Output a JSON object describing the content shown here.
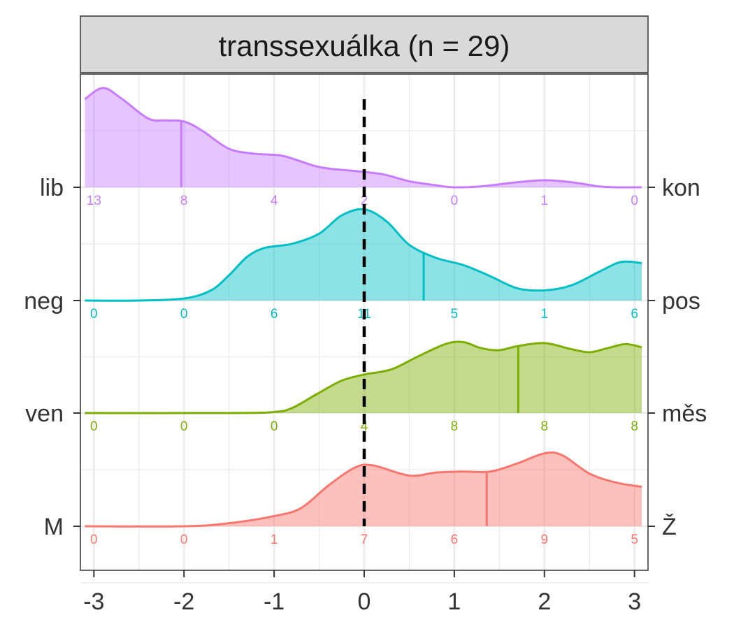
{
  "chart_data": {
    "type": "area",
    "title": "transsexuálka (n = 29)",
    "x_ticks": [
      "-3",
      "-2",
      "-1",
      "0",
      "1",
      "2",
      "3"
    ],
    "xlim": [
      -3.15,
      3.15
    ],
    "reference_line_x": 0,
    "count_positions": [
      -3,
      -2,
      -1,
      0,
      1,
      2,
      3
    ],
    "series": [
      {
        "left_label": "lib",
        "right_label": "kon",
        "color": "#C77CFF",
        "counts": [
          "13",
          "8",
          "4",
          "2",
          "0",
          "1",
          "0"
        ],
        "mean": -2.03,
        "density": [
          [
            -3.1,
            0.87
          ],
          [
            -2.9,
            0.98
          ],
          [
            -2.7,
            0.88
          ],
          [
            -2.4,
            0.68
          ],
          [
            -2.2,
            0.66
          ],
          [
            -2.0,
            0.65
          ],
          [
            -1.8,
            0.56
          ],
          [
            -1.5,
            0.38
          ],
          [
            -1.2,
            0.33
          ],
          [
            -0.9,
            0.31
          ],
          [
            -0.5,
            0.2
          ],
          [
            -0.1,
            0.16
          ],
          [
            0.2,
            0.13
          ],
          [
            0.5,
            0.06
          ],
          [
            0.8,
            0.02
          ],
          [
            1.0,
            0.0
          ],
          [
            1.3,
            0.01
          ],
          [
            1.7,
            0.05
          ],
          [
            2.0,
            0.07
          ],
          [
            2.3,
            0.05
          ],
          [
            2.6,
            0.01
          ],
          [
            2.8,
            0.0
          ],
          [
            3.08,
            0.0
          ]
        ]
      },
      {
        "left_label": "neg",
        "right_label": "pos",
        "color": "#00BFC4",
        "counts": [
          "0",
          "0",
          "6",
          "11",
          "5",
          "1",
          "6"
        ],
        "mean": 0.66,
        "density": [
          [
            -3.1,
            0.0
          ],
          [
            -2.5,
            0.0
          ],
          [
            -2.0,
            0.02
          ],
          [
            -1.7,
            0.1
          ],
          [
            -1.5,
            0.25
          ],
          [
            -1.3,
            0.43
          ],
          [
            -1.1,
            0.52
          ],
          [
            -0.8,
            0.56
          ],
          [
            -0.5,
            0.66
          ],
          [
            -0.25,
            0.84
          ],
          [
            0.0,
            0.9
          ],
          [
            0.25,
            0.78
          ],
          [
            0.5,
            0.55
          ],
          [
            0.8,
            0.42
          ],
          [
            1.1,
            0.35
          ],
          [
            1.4,
            0.24
          ],
          [
            1.7,
            0.12
          ],
          [
            2.0,
            0.1
          ],
          [
            2.3,
            0.15
          ],
          [
            2.6,
            0.28
          ],
          [
            2.85,
            0.38
          ],
          [
            3.08,
            0.37
          ]
        ]
      },
      {
        "left_label": "ven",
        "right_label": "měs",
        "color": "#7CAE00",
        "counts": [
          "0",
          "0",
          "0",
          "4",
          "8",
          "8",
          "8"
        ],
        "mean": 1.71,
        "density": [
          [
            -3.1,
            0.0
          ],
          [
            -1.5,
            0.0
          ],
          [
            -1.0,
            0.01
          ],
          [
            -0.8,
            0.05
          ],
          [
            -0.5,
            0.2
          ],
          [
            -0.25,
            0.32
          ],
          [
            0.0,
            0.38
          ],
          [
            0.3,
            0.43
          ],
          [
            0.6,
            0.56
          ],
          [
            0.9,
            0.68
          ],
          [
            1.1,
            0.7
          ],
          [
            1.3,
            0.64
          ],
          [
            1.5,
            0.62
          ],
          [
            1.7,
            0.66
          ],
          [
            2.0,
            0.69
          ],
          [
            2.3,
            0.63
          ],
          [
            2.5,
            0.6
          ],
          [
            2.7,
            0.64
          ],
          [
            2.9,
            0.68
          ],
          [
            3.08,
            0.65
          ]
        ]
      },
      {
        "left_label": "M",
        "right_label": "Ž",
        "color": "#F8766D",
        "counts": [
          "0",
          "0",
          "1",
          "7",
          "6",
          "9",
          "5"
        ],
        "mean": 1.36,
        "density": [
          [
            -3.1,
            0.0
          ],
          [
            -2.0,
            0.0
          ],
          [
            -1.5,
            0.03
          ],
          [
            -1.0,
            0.1
          ],
          [
            -0.7,
            0.18
          ],
          [
            -0.4,
            0.4
          ],
          [
            -0.1,
            0.58
          ],
          [
            0.1,
            0.6
          ],
          [
            0.5,
            0.5
          ],
          [
            0.8,
            0.53
          ],
          [
            1.1,
            0.54
          ],
          [
            1.4,
            0.54
          ],
          [
            1.7,
            0.62
          ],
          [
            2.0,
            0.72
          ],
          [
            2.2,
            0.7
          ],
          [
            2.5,
            0.52
          ],
          [
            2.8,
            0.43
          ],
          [
            3.08,
            0.39
          ]
        ]
      }
    ]
  }
}
